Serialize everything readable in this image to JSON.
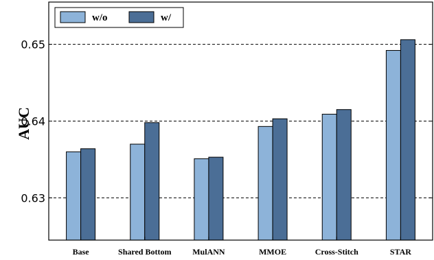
{
  "chart_data": {
    "type": "bar",
    "categories": [
      "Base",
      "Shared Bottom",
      "MulANN",
      "MMOE",
      "Cross-Stitch",
      "STAR"
    ],
    "series": [
      {
        "name": "w/o",
        "color": "#8db3d9",
        "values": [
          0.636,
          0.637,
          0.6351,
          0.6393,
          0.6409,
          0.6492
        ]
      },
      {
        "name": "w/",
        "color": "#4b6e96",
        "values": [
          0.6364,
          0.6398,
          0.6353,
          0.6403,
          0.6415,
          0.6506
        ]
      }
    ],
    "ylabel": "AUC",
    "xlabel": "",
    "ylim": [
      0.6245,
      0.6555
    ],
    "yticks": [
      0.63,
      0.64,
      0.65
    ],
    "ytick_labels": [
      "0.63",
      "0.64",
      "0.65"
    ],
    "grid": "horizontal dashed",
    "legend_position": "top-left"
  }
}
